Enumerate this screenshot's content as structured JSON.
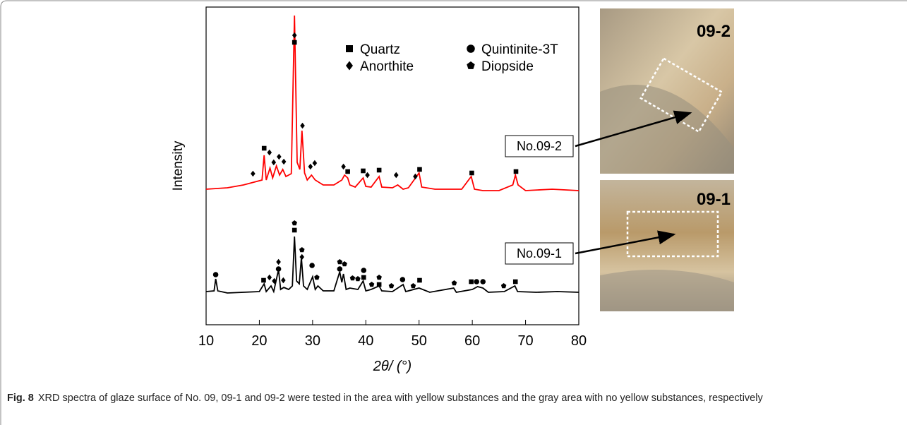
{
  "chart_data": {
    "type": "line",
    "x_label": "2θ/ (°)",
    "y_label": "Intensity",
    "xlim": [
      10,
      80
    ],
    "xticks": [
      10,
      20,
      30,
      40,
      50,
      60,
      70,
      80
    ],
    "ylim": [
      0,
      450
    ],
    "phases": [
      {
        "name": "Quartz",
        "shape": "square"
      },
      {
        "name": "Anorthite",
        "shape": "diamond"
      },
      {
        "name": "Quintinite-3T",
        "shape": "circle"
      },
      {
        "name": "Diopside",
        "shape": "pentagon"
      }
    ],
    "series": [
      {
        "name": "No.09-2",
        "color": "#ff0000",
        "x": [
          10,
          14,
          17,
          19,
          20.5,
          20.9,
          21.3,
          22,
          22.5,
          23.2,
          23.8,
          24.4,
          25,
          26,
          26.6,
          27.1,
          27.6,
          28,
          28.5,
          29,
          29.8,
          30.5,
          32,
          34,
          35.5,
          36,
          36.6,
          37,
          38,
          39.5,
          40,
          41,
          42.5,
          43,
          45,
          46,
          47,
          48,
          50,
          50.5,
          53,
          56,
          58,
          59.8,
          60.4,
          62,
          65,
          67.6,
          68.1,
          68.6,
          70,
          75,
          80
        ],
        "values": [
          192,
          194,
          198,
          202,
          205,
          240,
          205,
          222,
          208,
          225,
          212,
          220,
          210,
          214,
          438,
          230,
          220,
          275,
          215,
          205,
          212,
          205,
          198,
          198,
          205,
          212,
          208,
          198,
          195,
          208,
          196,
          195,
          210,
          195,
          194,
          198,
          192,
          194,
          215,
          195,
          192,
          192,
          192,
          210,
          192,
          190,
          190,
          198,
          212,
          198,
          190,
          192,
          190
        ],
        "peak_marks": [
          {
            "x": 18.8,
            "y": 214,
            "phases": [
              "Anorthite"
            ]
          },
          {
            "x": 20.9,
            "y": 250,
            "phases": [
              "Quartz"
            ]
          },
          {
            "x": 21.9,
            "y": 244,
            "phases": [
              "Anorthite"
            ]
          },
          {
            "x": 22.7,
            "y": 230,
            "phases": [
              "Anorthite"
            ]
          },
          {
            "x": 23.7,
            "y": 238,
            "phases": [
              "Anorthite"
            ]
          },
          {
            "x": 24.6,
            "y": 231,
            "phases": [
              "Anorthite"
            ]
          },
          {
            "x": 26.6,
            "y": 400,
            "phases": [
              "Quartz",
              "Anorthite"
            ]
          },
          {
            "x": 28.1,
            "y": 282,
            "phases": [
              "Anorthite"
            ]
          },
          {
            "x": 29.6,
            "y": 224,
            "phases": [
              "Anorthite"
            ]
          },
          {
            "x": 30.4,
            "y": 229,
            "phases": [
              "Anorthite"
            ]
          },
          {
            "x": 35.8,
            "y": 224,
            "phases": [
              "Anorthite"
            ]
          },
          {
            "x": 36.6,
            "y": 217,
            "phases": [
              "Quartz"
            ]
          },
          {
            "x": 39.5,
            "y": 218,
            "phases": [
              "Quartz"
            ]
          },
          {
            "x": 40.3,
            "y": 212,
            "phases": [
              "Anorthite"
            ]
          },
          {
            "x": 42.5,
            "y": 219,
            "phases": [
              "Quartz"
            ]
          },
          {
            "x": 45.7,
            "y": 212,
            "phases": [
              "Anorthite"
            ]
          },
          {
            "x": 49.3,
            "y": 210,
            "phases": [
              "Anorthite"
            ]
          },
          {
            "x": 50.1,
            "y": 220,
            "phases": [
              "Quartz"
            ]
          },
          {
            "x": 59.9,
            "y": 215,
            "phases": [
              "Quartz"
            ]
          },
          {
            "x": 68.2,
            "y": 217,
            "phases": [
              "Quartz"
            ]
          }
        ]
      },
      {
        "name": "No.09-1",
        "color": "#000000",
        "x": [
          10,
          11.5,
          11.8,
          12.2,
          14,
          17,
          20,
          20.9,
          21.3,
          22.2,
          22.7,
          23.6,
          24,
          24.6,
          25.5,
          26.2,
          26.6,
          27,
          27.5,
          27.9,
          28.3,
          29,
          30,
          30.5,
          31,
          32,
          34,
          35.1,
          35.5,
          35.8,
          36.3,
          37,
          38.5,
          39.5,
          40,
          41,
          42.5,
          43,
          45,
          47,
          47.5,
          50,
          52,
          56.5,
          57,
          60,
          61,
          62,
          63,
          66,
          68,
          68.5,
          72,
          76,
          80
        ],
        "values": [
          47,
          48,
          65,
          48,
          45,
          46,
          47,
          58,
          47,
          55,
          47,
          78,
          50,
          53,
          50,
          55,
          125,
          62,
          58,
          95,
          55,
          50,
          68,
          50,
          55,
          48,
          48,
          75,
          60,
          72,
          50,
          52,
          50,
          62,
          48,
          50,
          55,
          48,
          47,
          57,
          47,
          52,
          46,
          52,
          46,
          50,
          54,
          52,
          46,
          47,
          55,
          47,
          46,
          47,
          46
        ],
        "peak_marks": [
          {
            "x": 11.8,
            "y": 71,
            "phases": [
              "Quintinite-3T"
            ]
          },
          {
            "x": 20.8,
            "y": 63,
            "phases": [
              "Quartz"
            ]
          },
          {
            "x": 21.9,
            "y": 67,
            "phases": [
              "Anorthite"
            ]
          },
          {
            "x": 22.8,
            "y": 62,
            "phases": [
              "Anorthite"
            ]
          },
          {
            "x": 23.6,
            "y": 79,
            "phases": [
              "Quintinite-3T",
              "Anorthite"
            ]
          },
          {
            "x": 24.5,
            "y": 63,
            "phases": [
              "Anorthite"
            ]
          },
          {
            "x": 26.6,
            "y": 134,
            "phases": [
              "Quartz",
              "Diopside"
            ]
          },
          {
            "x": 28,
            "y": 96,
            "phases": [
              "Anorthite",
              "Diopside"
            ]
          },
          {
            "x": 29.9,
            "y": 84,
            "phases": [
              "Quintinite-3T"
            ]
          },
          {
            "x": 30.8,
            "y": 67,
            "phases": [
              "Diopside"
            ]
          },
          {
            "x": 35.1,
            "y": 79,
            "phases": [
              "Quintinite-3T",
              "Diopside"
            ]
          },
          {
            "x": 36,
            "y": 86,
            "phases": [
              "Diopside"
            ]
          },
          {
            "x": 37.5,
            "y": 66,
            "phases": [
              "Diopside"
            ]
          },
          {
            "x": 38.5,
            "y": 65,
            "phases": [
              "Diopside"
            ]
          },
          {
            "x": 39.6,
            "y": 67,
            "phases": [
              "Quartz",
              "Quintinite-3T"
            ]
          },
          {
            "x": 41.1,
            "y": 57,
            "phases": [
              "Diopside"
            ]
          },
          {
            "x": 42.5,
            "y": 57,
            "phases": [
              "Quartz",
              "Diopside"
            ]
          },
          {
            "x": 44.8,
            "y": 55,
            "phases": [
              "Diopside"
            ]
          },
          {
            "x": 46.9,
            "y": 64,
            "phases": [
              "Quintinite-3T"
            ]
          },
          {
            "x": 48.9,
            "y": 55,
            "phases": [
              "Diopside"
            ]
          },
          {
            "x": 50.1,
            "y": 63,
            "phases": [
              "Quartz"
            ]
          },
          {
            "x": 56.6,
            "y": 59,
            "phases": [
              "Diopside"
            ]
          },
          {
            "x": 59.8,
            "y": 61,
            "phases": [
              "Quartz"
            ]
          },
          {
            "x": 60.8,
            "y": 61,
            "phases": [
              "Quintinite-3T"
            ]
          },
          {
            "x": 62,
            "y": 61,
            "phases": [
              "Quintinite-3T"
            ]
          },
          {
            "x": 65.9,
            "y": 55,
            "phases": [
              "Diopside"
            ]
          },
          {
            "x": 68.1,
            "y": 61,
            "phases": [
              "Quartz"
            ]
          }
        ]
      }
    ]
  },
  "photos": [
    {
      "label": "09-2"
    },
    {
      "label": "09-1"
    }
  ],
  "caption": {
    "label": "Fig. 8",
    "text": "XRD spectra of glaze surface of No. 09, 09-1 and 09-2 were tested in the area with yellow substances and the gray area with no yellow substances, respectively"
  }
}
